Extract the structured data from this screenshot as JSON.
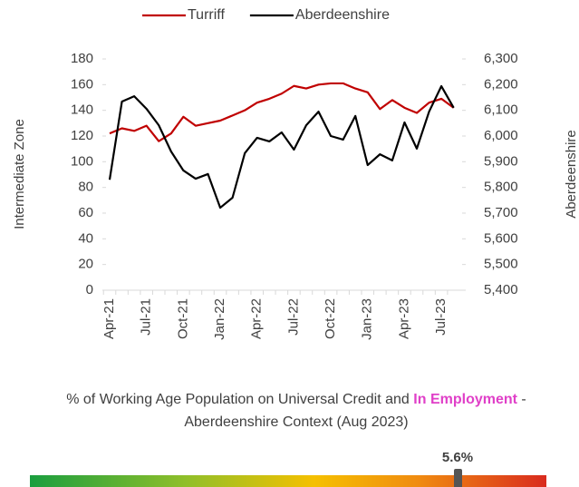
{
  "chart_data": {
    "type": "line",
    "legend": "top",
    "y_label": "Intermediate Zone",
    "y2_label": "Aberdeenshire",
    "categories": [
      "Apr-21",
      null,
      null,
      "Jul-21",
      null,
      null,
      "Oct-21",
      null,
      null,
      "Jan-22",
      null,
      null,
      "Apr-22",
      null,
      null,
      "Jul-22",
      null,
      null,
      "Oct-22",
      null,
      null,
      "Jan-23",
      null,
      null,
      "Apr-23",
      null,
      null,
      "Jul-23",
      null
    ],
    "series": [
      {
        "name": "Turriff",
        "color": "#c00000",
        "values": [
          122,
          126,
          124,
          128,
          116,
          122,
          135,
          128,
          130,
          132,
          136,
          140,
          146,
          149,
          153,
          159,
          157,
          160,
          161,
          161,
          157,
          154,
          141,
          148,
          142,
          138,
          146,
          149,
          142
        ]
      },
      {
        "name": "Aberdeenshire",
        "color": "#000000",
        "axis": "y2",
        "values": [
          5830,
          6134,
          6155,
          6106,
          6042,
          5940,
          5866,
          5834,
          5852,
          5721,
          5760,
          5933,
          5993,
          5979,
          6014,
          5947,
          6042,
          6095,
          6000,
          5986,
          6078,
          5887,
          5929,
          5905,
          6053,
          5951,
          6095,
          6194,
          6110
        ]
      }
    ],
    "ylim": [
      0,
      180
    ],
    "yticks": [
      0,
      20,
      40,
      60,
      80,
      100,
      120,
      140,
      160,
      180
    ],
    "y2lim": [
      5400,
      6300
    ],
    "y2ticks": [
      {
        "value": 5400,
        "label": "5,400"
      },
      {
        "value": 5500,
        "label": "5,500"
      },
      {
        "value": 5600,
        "label": "5,600"
      },
      {
        "value": 5700,
        "label": "5,700"
      },
      {
        "value": 5800,
        "label": "5,800"
      },
      {
        "value": 5900,
        "label": "5,900"
      },
      {
        "value": 6000,
        "label": "6,000"
      },
      {
        "value": 6100,
        "label": "6,100"
      },
      {
        "value": 6200,
        "label": "6,200"
      },
      {
        "value": 6300,
        "label": "6,300"
      }
    ]
  },
  "context": {
    "title": [
      "% of Working Age Population on Universal Credit and",
      "In Employment",
      "- Aberdeenshire Context (Aug 2023)"
    ],
    "indicator": {
      "value": 5.6,
      "label": "5.6%"
    }
  }
}
